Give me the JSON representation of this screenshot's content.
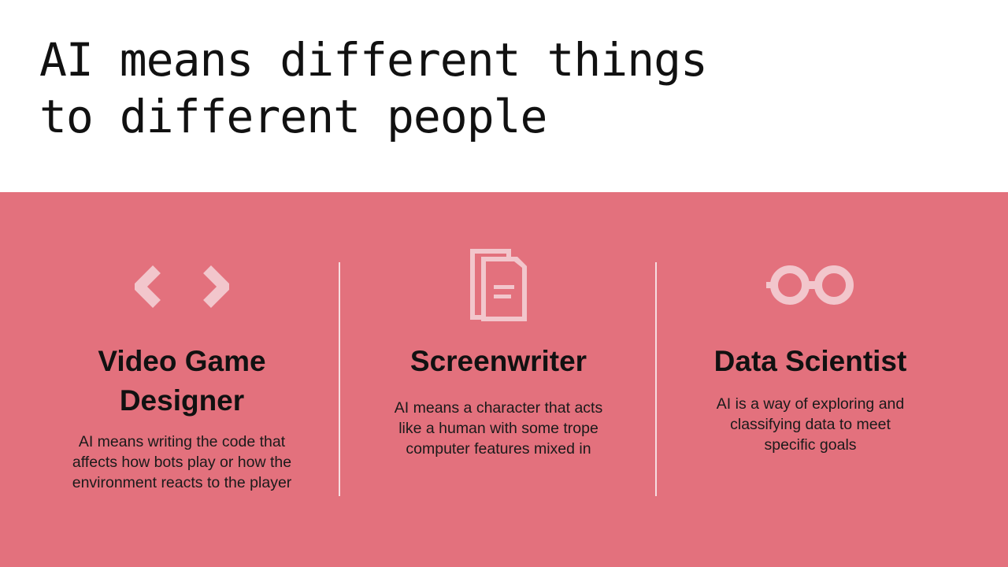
{
  "slide": {
    "title_lines": [
      "AI means different things",
      "to different people"
    ],
    "colors": {
      "background_top": "#ffffff",
      "panel": "#e3717d",
      "icon": "#f2c6cc",
      "divider": "#f7dde1",
      "text": "#111111"
    }
  },
  "roles": [
    {
      "icon": "code-brackets-icon",
      "heading_lines": [
        "Video Game",
        "Designer"
      ],
      "description_lines": [
        "AI means writing the code that",
        "affects how bots play or how the",
        "environment reacts to the player"
      ]
    },
    {
      "icon": "documents-icon",
      "heading_lines": [
        "Screenwriter"
      ],
      "description_lines": [
        "AI means a character that acts",
        "like a human with some trope",
        "computer features mixed in"
      ]
    },
    {
      "icon": "glasses-icon",
      "heading_lines": [
        "Data Scientist"
      ],
      "description_lines": [
        "AI is a way of exploring and",
        "classifying data to meet",
        "specific goals"
      ]
    }
  ]
}
